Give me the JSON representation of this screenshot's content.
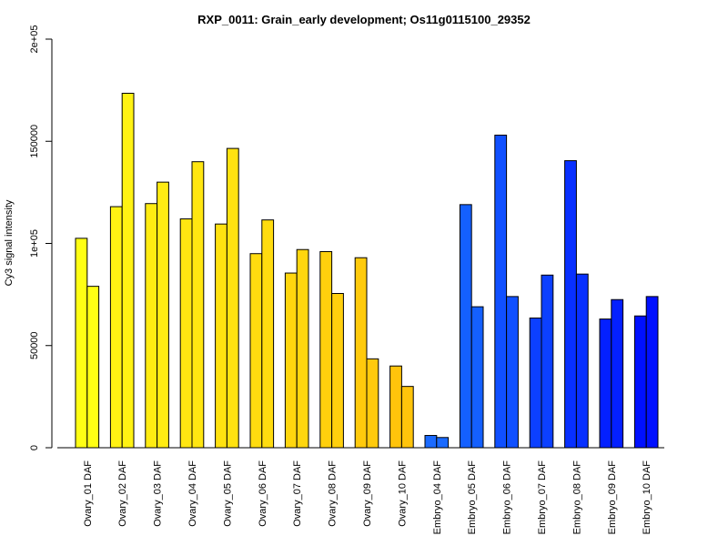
{
  "chart_data": {
    "type": "bar",
    "title": "RXP_0011: Grain_early development; Os11g0115100_29352",
    "xlabel": "",
    "ylabel": "Cy3 signal intensity",
    "ylim": [
      0,
      200000
    ],
    "yticks": [
      {
        "value": 0,
        "label": "0"
      },
      {
        "value": 50000,
        "label": "50000"
      },
      {
        "value": 100000,
        "label": "1e+05"
      },
      {
        "value": 150000,
        "label": "150000"
      },
      {
        "value": 200000,
        "label": "2e+05"
      }
    ],
    "grid": false,
    "legend": "none",
    "categories": [
      "Ovary_01 DAF",
      "Ovary_02 DAF",
      "Ovary_03 DAF",
      "Ovary_04 DAF",
      "Ovary_05 DAF",
      "Ovary_06 DAF",
      "Ovary_07 DAF",
      "Ovary_08 DAF",
      "Ovary_09 DAF",
      "Ovary_10 DAF",
      "Embryo_04 DAF",
      "Embryo_05 DAF",
      "Embryo_06 DAF",
      "Embryo_07 DAF",
      "Embryo_08 DAF",
      "Embryo_09 DAF",
      "Embryo_10 DAF"
    ],
    "series": [
      {
        "values": [
          102500,
          118000,
          119500,
          112000,
          109500,
          95000,
          85500,
          96000,
          93000,
          40000,
          6000,
          119000,
          153000,
          63500,
          140500,
          63000,
          64500
        ]
      },
      {
        "values": [
          79000,
          173500,
          130000,
          140000,
          146500,
          111500,
          97000,
          75500,
          43500,
          30000,
          5000,
          69000,
          74000,
          84500,
          85000,
          72500,
          74000
        ]
      }
    ],
    "colors": [
      "#ffff14",
      "#fff213",
      "#ffec12",
      "#ffe611",
      "#ffe210",
      "#ffdc0f",
      "#ffd60e",
      "#ffd00d",
      "#ffca0c",
      "#ffc40b",
      "#1a6aff",
      "#1460ff",
      "#1050ff",
      "#0c40ff",
      "#0830ff",
      "#0420ff",
      "#0010ff"
    ]
  }
}
